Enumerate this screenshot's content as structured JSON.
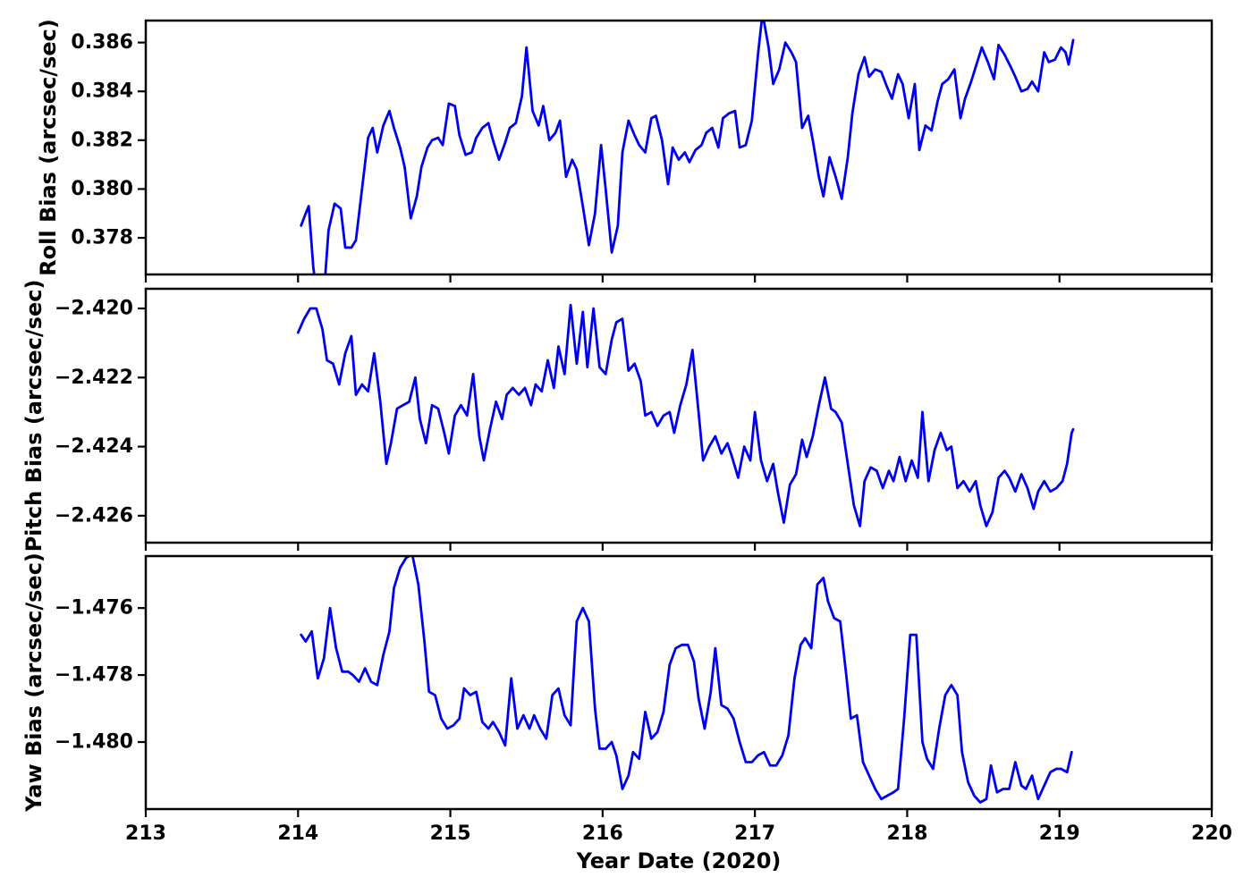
{
  "figure": {
    "background": "#ffffff",
    "line_color": "#0000f0",
    "axis_color": "#000000"
  },
  "x_axis": {
    "label": "Year Date (2020)",
    "xlim": [
      213,
      220
    ],
    "ticks": [
      213,
      214,
      215,
      216,
      217,
      218,
      219,
      220
    ],
    "tick_labels": [
      "213",
      "214",
      "215",
      "216",
      "217",
      "218",
      "219",
      "220"
    ]
  },
  "chart_data": [
    {
      "type": "line",
      "name": "roll-bias",
      "ylabel": "Roll Bias (arcsec/sec)",
      "xlabel": "Year Date (2020)",
      "legend": null,
      "grid": false,
      "ylim": [
        0.3765,
        0.3869
      ],
      "yticks": [
        0.378,
        0.38,
        0.382,
        0.384,
        0.386
      ],
      "ytick_labels": [
        "0.378",
        "0.380",
        "0.382",
        "0.384",
        "0.386"
      ],
      "x": [
        214.02,
        214.05,
        214.07,
        214.1,
        214.13,
        214.17,
        214.2,
        214.24,
        214.28,
        214.31,
        214.35,
        214.38,
        214.42,
        214.46,
        214.49,
        214.52,
        214.56,
        214.6,
        214.63,
        214.67,
        214.7,
        214.74,
        214.78,
        214.81,
        214.85,
        214.88,
        214.92,
        214.95,
        214.99,
        215.03,
        215.06,
        215.1,
        215.14,
        215.17,
        215.21,
        215.25,
        215.28,
        215.32,
        215.36,
        215.39,
        215.43,
        215.47,
        215.5,
        215.54,
        215.58,
        215.61,
        215.65,
        215.69,
        215.72,
        215.76,
        215.8,
        215.83,
        215.87,
        215.91,
        215.95,
        215.99,
        216.02,
        216.06,
        216.1,
        216.13,
        216.17,
        216.21,
        216.24,
        216.28,
        216.32,
        216.35,
        216.39,
        216.43,
        216.46,
        216.5,
        216.54,
        216.57,
        216.61,
        216.65,
        216.68,
        216.72,
        216.76,
        216.79,
        216.83,
        216.87,
        216.9,
        216.94,
        216.98,
        217.02,
        217.05,
        217.09,
        217.12,
        217.16,
        217.2,
        217.24,
        217.27,
        217.31,
        217.35,
        217.38,
        217.42,
        217.45,
        217.49,
        217.53,
        217.57,
        217.61,
        217.64,
        217.68,
        217.72,
        217.75,
        217.79,
        217.83,
        217.86,
        217.9,
        217.94,
        217.97,
        218.01,
        218.05,
        218.08,
        218.12,
        218.16,
        218.2,
        218.23,
        218.27,
        218.31,
        218.35,
        218.38,
        218.42,
        218.46,
        218.49,
        218.53,
        218.57,
        218.6,
        218.64,
        218.68,
        218.71,
        218.75,
        218.79,
        218.82,
        218.86,
        218.9,
        218.93,
        218.97,
        219.01,
        219.04,
        219.06,
        219.09
      ],
      "y": [
        0.3785,
        0.379,
        0.3793,
        0.3768,
        0.3754,
        0.3757,
        0.3783,
        0.3794,
        0.3792,
        0.3776,
        0.3776,
        0.3779,
        0.38,
        0.3821,
        0.3825,
        0.3815,
        0.3826,
        0.3832,
        0.3825,
        0.3817,
        0.3809,
        0.3788,
        0.3797,
        0.3809,
        0.3817,
        0.382,
        0.3821,
        0.3818,
        0.3835,
        0.3834,
        0.3822,
        0.3814,
        0.3815,
        0.3821,
        0.3825,
        0.3827,
        0.382,
        0.3812,
        0.3819,
        0.3825,
        0.3827,
        0.3838,
        0.3858,
        0.3832,
        0.3826,
        0.3834,
        0.382,
        0.3823,
        0.3828,
        0.3805,
        0.3812,
        0.3808,
        0.3793,
        0.3777,
        0.379,
        0.3818,
        0.38,
        0.3774,
        0.3785,
        0.3815,
        0.3828,
        0.3822,
        0.3818,
        0.3815,
        0.3829,
        0.383,
        0.382,
        0.3802,
        0.3817,
        0.3812,
        0.3815,
        0.3811,
        0.3816,
        0.3818,
        0.3823,
        0.3825,
        0.3817,
        0.3829,
        0.3831,
        0.3832,
        0.3817,
        0.3818,
        0.3828,
        0.3855,
        0.3872,
        0.3858,
        0.3843,
        0.3849,
        0.386,
        0.3856,
        0.3852,
        0.3825,
        0.383,
        0.382,
        0.3805,
        0.3797,
        0.3813,
        0.3805,
        0.3796,
        0.3813,
        0.3831,
        0.3847,
        0.3854,
        0.3846,
        0.3849,
        0.3848,
        0.3843,
        0.3837,
        0.3847,
        0.3843,
        0.3829,
        0.3843,
        0.3816,
        0.3826,
        0.3824,
        0.3836,
        0.3843,
        0.3845,
        0.3849,
        0.3829,
        0.3837,
        0.3844,
        0.3852,
        0.3858,
        0.3852,
        0.3845,
        0.3859,
        0.3855,
        0.385,
        0.3846,
        0.384,
        0.3841,
        0.3844,
        0.384,
        0.3856,
        0.3852,
        0.3853,
        0.3858,
        0.3856,
        0.3851,
        0.3861
      ]
    },
    {
      "type": "line",
      "name": "pitch-bias",
      "ylabel": "Pitch Bias (arcsec/sec)",
      "xlabel": "Year Date (2020)",
      "legend": null,
      "grid": false,
      "ylim": [
        -2.42678,
        -2.41943
      ],
      "yticks": [
        -2.42,
        -2.422,
        -2.424,
        -2.426
      ],
      "ytick_labels": [
        "−2.420",
        "−2.422",
        "−2.424",
        "−2.426"
      ],
      "x": [
        214.0,
        214.04,
        214.08,
        214.12,
        214.16,
        214.19,
        214.23,
        214.27,
        214.31,
        214.35,
        214.38,
        214.42,
        214.46,
        214.5,
        214.54,
        214.58,
        214.61,
        214.65,
        214.69,
        214.73,
        214.77,
        214.8,
        214.84,
        214.88,
        214.92,
        214.96,
        214.99,
        215.03,
        215.07,
        215.11,
        215.15,
        215.19,
        215.22,
        215.26,
        215.3,
        215.34,
        215.37,
        215.41,
        215.45,
        215.49,
        215.53,
        215.56,
        215.6,
        215.64,
        215.68,
        215.71,
        215.75,
        215.79,
        215.83,
        215.87,
        215.9,
        215.94,
        215.98,
        216.02,
        216.06,
        216.09,
        216.13,
        216.17,
        216.21,
        216.25,
        216.28,
        216.32,
        216.36,
        216.4,
        216.44,
        216.47,
        216.51,
        216.55,
        216.59,
        216.63,
        216.66,
        216.7,
        216.74,
        216.78,
        216.82,
        216.85,
        216.89,
        216.93,
        216.97,
        217.0,
        217.04,
        217.08,
        217.12,
        217.15,
        217.19,
        217.23,
        217.27,
        217.31,
        217.34,
        217.38,
        217.42,
        217.46,
        217.5,
        217.53,
        217.57,
        217.61,
        217.65,
        217.69,
        217.72,
        217.76,
        217.8,
        217.84,
        217.88,
        217.91,
        217.95,
        217.99,
        218.03,
        218.07,
        218.1,
        218.14,
        218.18,
        218.22,
        218.26,
        218.29,
        218.33,
        218.37,
        218.41,
        218.45,
        218.48,
        218.52,
        218.56,
        218.6,
        218.64,
        218.67,
        218.71,
        218.75,
        218.79,
        218.83,
        218.86,
        218.9,
        218.94,
        218.98,
        219.02,
        219.05,
        219.08,
        219.09
      ],
      "y": [
        -2.4207,
        -2.4203,
        -2.42,
        -2.42,
        -2.4206,
        -2.4215,
        -2.4216,
        -2.4222,
        -2.4213,
        -2.4208,
        -2.4225,
        -2.4222,
        -2.4224,
        -2.4213,
        -2.4227,
        -2.4245,
        -2.4239,
        -2.4229,
        -2.4228,
        -2.4227,
        -2.422,
        -2.4232,
        -2.4239,
        -2.4228,
        -2.4229,
        -2.4236,
        -2.4242,
        -2.4231,
        -2.4228,
        -2.4231,
        -2.4219,
        -2.4237,
        -2.4244,
        -2.4235,
        -2.4227,
        -2.4232,
        -2.4225,
        -2.4223,
        -2.4225,
        -2.4223,
        -2.4228,
        -2.4222,
        -2.4224,
        -2.4215,
        -2.4223,
        -2.4211,
        -2.4219,
        -2.4199,
        -2.4216,
        -2.4201,
        -2.4217,
        -2.42,
        -2.4217,
        -2.4219,
        -2.4209,
        -2.4204,
        -2.4203,
        -2.4218,
        -2.4216,
        -2.4221,
        -2.4231,
        -2.423,
        -2.4234,
        -2.4231,
        -2.423,
        -2.4236,
        -2.4228,
        -2.4222,
        -2.4212,
        -2.423,
        -2.4244,
        -2.424,
        -2.4237,
        -2.4242,
        -2.4239,
        -2.4243,
        -2.4249,
        -2.424,
        -2.4244,
        -2.423,
        -2.4244,
        -2.425,
        -2.4245,
        -2.4253,
        -2.4262,
        -2.4251,
        -2.4248,
        -2.4238,
        -2.4243,
        -2.4237,
        -2.4228,
        -2.422,
        -2.4229,
        -2.423,
        -2.4233,
        -2.4245,
        -2.4257,
        -2.4263,
        -2.425,
        -2.4246,
        -2.4247,
        -2.4252,
        -2.4247,
        -2.425,
        -2.4243,
        -2.425,
        -2.4244,
        -2.4249,
        -2.423,
        -2.425,
        -2.4241,
        -2.4236,
        -2.4241,
        -2.424,
        -2.4252,
        -2.425,
        -2.4253,
        -2.425,
        -2.4257,
        -2.4263,
        -2.4259,
        -2.4249,
        -2.4247,
        -2.4249,
        -2.4253,
        -2.4248,
        -2.4252,
        -2.4258,
        -2.4253,
        -2.425,
        -2.4253,
        -2.4252,
        -2.425,
        -2.4245,
        -2.4236,
        -2.4235
      ]
    },
    {
      "type": "line",
      "name": "yaw-bias",
      "ylabel": "Yaw Bias (arcsec/sec)",
      "xlabel": "Year Date (2020)",
      "legend": null,
      "grid": false,
      "ylim": [
        -1.482,
        -1.47445
      ],
      "yticks": [
        -1.476,
        -1.478,
        -1.48
      ],
      "ytick_labels": [
        "−1.476",
        "−1.478",
        "−1.480"
      ],
      "x": [
        214.02,
        214.05,
        214.09,
        214.13,
        214.17,
        214.21,
        214.25,
        214.29,
        214.33,
        214.36,
        214.4,
        214.44,
        214.48,
        214.52,
        214.56,
        214.6,
        214.63,
        214.67,
        214.71,
        214.75,
        214.79,
        214.83,
        214.86,
        214.9,
        214.94,
        214.98,
        215.02,
        215.06,
        215.09,
        215.13,
        215.17,
        215.21,
        215.25,
        215.28,
        215.32,
        215.36,
        215.4,
        215.44,
        215.48,
        215.52,
        215.55,
        215.59,
        215.63,
        215.67,
        215.71,
        215.75,
        215.79,
        215.83,
        215.87,
        215.91,
        215.95,
        215.98,
        216.02,
        216.06,
        216.09,
        216.13,
        216.17,
        216.2,
        216.24,
        216.28,
        216.32,
        216.36,
        216.4,
        216.44,
        216.48,
        216.52,
        216.56,
        216.6,
        216.63,
        216.67,
        216.71,
        216.74,
        216.78,
        216.82,
        216.86,
        216.9,
        216.94,
        216.98,
        217.02,
        217.06,
        217.1,
        217.14,
        217.18,
        217.22,
        217.26,
        217.3,
        217.33,
        217.37,
        217.41,
        217.45,
        217.48,
        217.52,
        217.56,
        217.6,
        217.63,
        217.67,
        217.71,
        217.75,
        217.79,
        217.83,
        217.87,
        217.91,
        217.94,
        217.98,
        218.02,
        218.06,
        218.1,
        218.13,
        218.17,
        218.21,
        218.25,
        218.29,
        218.33,
        218.36,
        218.4,
        218.44,
        218.48,
        218.52,
        218.55,
        218.59,
        218.63,
        218.67,
        218.71,
        218.75,
        218.78,
        218.82,
        218.86,
        218.9,
        218.94,
        218.98,
        219.01,
        219.05,
        219.08
      ],
      "y": [
        -1.4768,
        -1.477,
        -1.4767,
        -1.4781,
        -1.4775,
        -1.476,
        -1.4772,
        -1.4779,
        -1.4779,
        -1.478,
        -1.4782,
        -1.4778,
        -1.4782,
        -1.4783,
        -1.4774,
        -1.4767,
        -1.4754,
        -1.4748,
        -1.4745,
        -1.4744,
        -1.4753,
        -1.477,
        -1.4785,
        -1.4786,
        -1.4793,
        -1.4796,
        -1.4795,
        -1.4793,
        -1.4784,
        -1.4786,
        -1.4785,
        -1.4794,
        -1.4796,
        -1.4794,
        -1.4797,
        -1.4801,
        -1.4781,
        -1.4796,
        -1.4792,
        -1.4796,
        -1.4792,
        -1.4796,
        -1.4799,
        -1.4786,
        -1.4784,
        -1.4792,
        -1.4795,
        -1.4764,
        -1.476,
        -1.4764,
        -1.479,
        -1.4802,
        -1.4802,
        -1.48,
        -1.4804,
        -1.4814,
        -1.481,
        -1.4803,
        -1.4805,
        -1.4791,
        -1.4799,
        -1.4797,
        -1.4791,
        -1.4777,
        -1.4772,
        -1.4771,
        -1.4771,
        -1.4776,
        -1.4787,
        -1.4796,
        -1.4785,
        -1.4772,
        -1.4789,
        -1.479,
        -1.4793,
        -1.48,
        -1.4806,
        -1.4806,
        -1.4804,
        -1.4803,
        -1.4807,
        -1.4807,
        -1.4804,
        -1.4798,
        -1.4781,
        -1.4771,
        -1.4769,
        -1.4772,
        -1.4753,
        -1.4751,
        -1.4758,
        -1.4763,
        -1.4764,
        -1.478,
        -1.4793,
        -1.4792,
        -1.4806,
        -1.481,
        -1.4814,
        -1.4817,
        -1.4816,
        -1.4815,
        -1.4814,
        -1.4793,
        -1.4768,
        -1.4768,
        -1.48,
        -1.4805,
        -1.4808,
        -1.4796,
        -1.4786,
        -1.4783,
        -1.4786,
        -1.4803,
        -1.4812,
        -1.4816,
        -1.4818,
        -1.4817,
        -1.4807,
        -1.4815,
        -1.4814,
        -1.4814,
        -1.4806,
        -1.4813,
        -1.4814,
        -1.481,
        -1.4817,
        -1.4813,
        -1.4809,
        -1.4808,
        -1.4808,
        -1.4809,
        -1.4803
      ]
    }
  ]
}
